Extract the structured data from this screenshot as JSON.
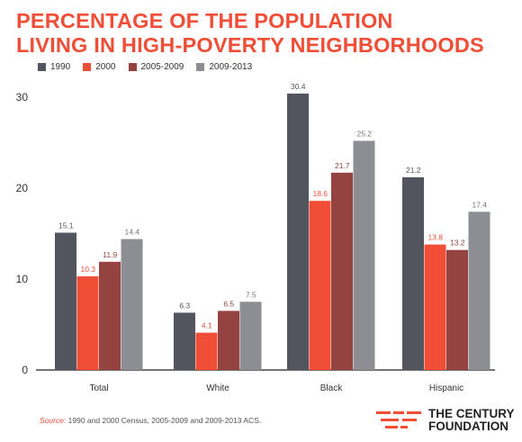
{
  "title_lines": [
    "PERCENTAGE OF THE POPULATION",
    "LIVING IN HIGH-POVERTY NEIGHBORHOODS"
  ],
  "source_label": "Source:",
  "source_text": " 1990 and 2000 Census, 2005-2009 and 2009-2013 ACS.",
  "logo": {
    "line1": "THE CENTURY",
    "line2": "FOUNDATION",
    "icon": "tcf-logo-mark-icon"
  },
  "colors": {
    "accent": "#f04e37",
    "1990": "#53555e",
    "2000": "#f04e37",
    "2005-2009": "#954340",
    "2009-2013": "#8d8e93"
  },
  "chart_data": {
    "type": "bar",
    "title": "PERCENTAGE OF THE POPULATION LIVING IN HIGH-POVERTY NEIGHBORHOODS",
    "categories": [
      "Total",
      "White",
      "Black",
      "Hispanic"
    ],
    "series": [
      {
        "name": "1990",
        "values": [
          15.1,
          6.3,
          30.4,
          21.2
        ],
        "labels": [
          "15.1",
          "6.3",
          "30.4",
          "21.2"
        ]
      },
      {
        "name": "2000",
        "values": [
          10.3,
          4.1,
          18.6,
          13.8
        ],
        "labels": [
          "10.3",
          "4.1",
          "18.6",
          "13.8"
        ]
      },
      {
        "name": "2005-2009",
        "values": [
          11.9,
          6.5,
          21.7,
          13.2
        ],
        "labels": [
          "11.9",
          "6.5",
          "21.7",
          "13.2"
        ]
      },
      {
        "name": "2009-2013",
        "values": [
          14.4,
          7.5,
          25.2,
          17.4
        ],
        "labels": [
          "14.4",
          "7.5",
          "25.2",
          "17.4"
        ]
      }
    ],
    "y_ticks": [
      "0",
      "10",
      "20",
      "30"
    ],
    "ylim": [
      0,
      30
    ],
    "grid": false,
    "legend_position": "top-left"
  }
}
